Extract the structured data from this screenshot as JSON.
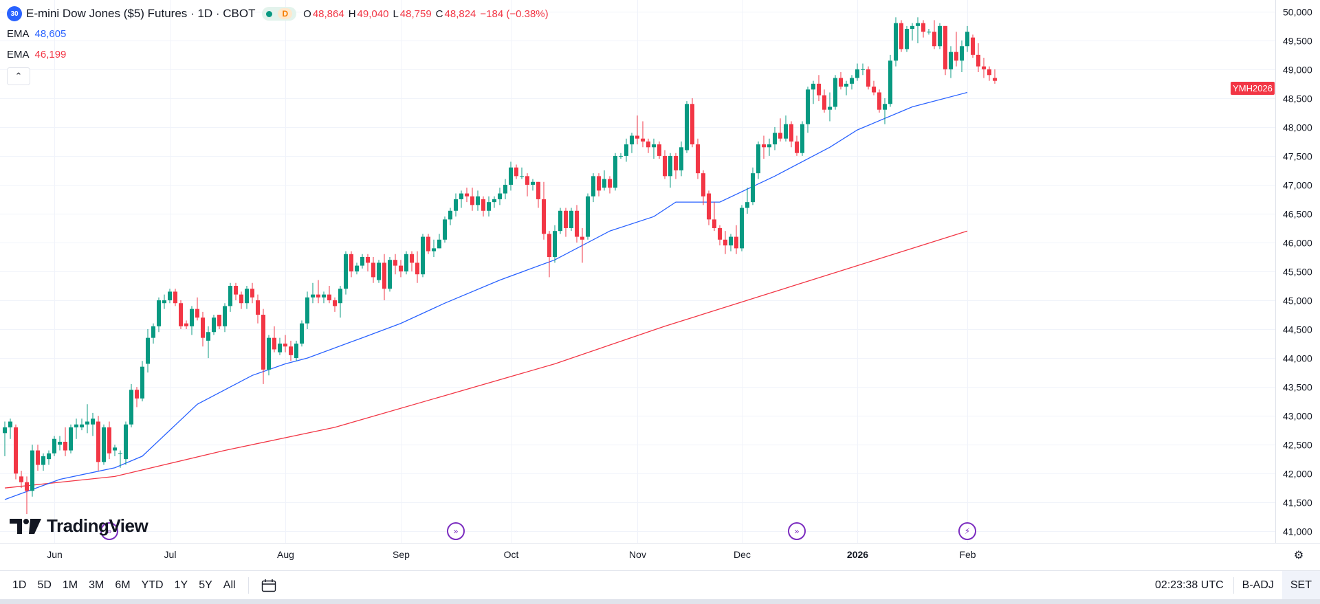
{
  "header": {
    "symbol_badge": "30",
    "title": "E-mini Dow Jones ($5) Futures · 1D · CBOT",
    "status_letter": "D",
    "ohlc": [
      {
        "label": "O",
        "value": "48,864"
      },
      {
        "label": "H",
        "value": "49,040"
      },
      {
        "label": "L",
        "value": "48,759"
      },
      {
        "label": "C",
        "value": "48,824"
      }
    ],
    "change": "−184 (−0.38%)",
    "collapse_glyph": "⌃"
  },
  "indicators": [
    {
      "label": "EMA",
      "value": "48,605",
      "color": "#2962ff"
    },
    {
      "label": "EMA",
      "value": "46,199",
      "color": "#f23645"
    }
  ],
  "price_badge": "YMH2026",
  "logo_text": "TradingView",
  "bottom_bar": {
    "timeframes": [
      "1D",
      "5D",
      "1M",
      "3M",
      "6M",
      "YTD",
      "1Y",
      "5Y",
      "All"
    ],
    "time": "02:23:38 UTC",
    "badj": "B-ADJ",
    "set": "SET"
  },
  "colors": {
    "up": "#089981",
    "down": "#f23645",
    "ema_fast": "#2962ff",
    "ema_slow": "#f23645",
    "grid": "#f0f3fa"
  },
  "icons": [
    "replay-icon",
    "flash-icon",
    "calendar-icon",
    "gear-icon"
  ],
  "chart_data": {
    "type": "candlestick",
    "ylim": [
      40800,
      50200
    ],
    "y_ticks": [
      41000,
      41500,
      42000,
      42500,
      43000,
      43500,
      44000,
      44500,
      45000,
      45500,
      46000,
      46500,
      47000,
      47500,
      48000,
      48500,
      49000,
      49500,
      50000
    ],
    "y_tick_labels": [
      "41,000",
      "41,500",
      "42,000",
      "42,500",
      "43,000",
      "43,500",
      "44,000",
      "44,500",
      "45,000",
      "45,500",
      "46,000",
      "46,500",
      "47,000",
      "47,500",
      "48,000",
      "48,500",
      "49,000",
      "49,500",
      "50,000"
    ],
    "x_labels": [
      {
        "label": "Jun",
        "bar": 9,
        "bold": false
      },
      {
        "label": "Jul",
        "bar": 30,
        "bold": false
      },
      {
        "label": "Aug",
        "bar": 51,
        "bold": false
      },
      {
        "label": "Sep",
        "bar": 72,
        "bold": false
      },
      {
        "label": "Oct",
        "bar": 92,
        "bold": false
      },
      {
        "label": "Nov",
        "bar": 115,
        "bold": false
      },
      {
        "label": "Dec",
        "bar": 134,
        "bold": false
      },
      {
        "label": "2026",
        "bar": 155,
        "bold": true
      },
      {
        "label": "Feb",
        "bar": 175,
        "bold": false
      }
    ],
    "event_bars": [
      19,
      82,
      144,
      175
    ],
    "candles": [
      [
        42700,
        42900,
        42300,
        42800
      ],
      [
        42800,
        42950,
        42600,
        42900
      ],
      [
        42800,
        42850,
        41900,
        42000
      ],
      [
        41950,
        42050,
        41750,
        41850
      ],
      [
        41850,
        41950,
        41300,
        41700
      ],
      [
        41700,
        42500,
        41600,
        42400
      ],
      [
        42400,
        42500,
        42050,
        42150
      ],
      [
        42150,
        42350,
        42050,
        42300
      ],
      [
        42250,
        42400,
        42150,
        42350
      ],
      [
        42350,
        42650,
        42300,
        42600
      ],
      [
        42500,
        42650,
        42400,
        42550
      ],
      [
        42550,
        42800,
        42300,
        42400
      ],
      [
        42400,
        42850,
        42350,
        42800
      ],
      [
        42800,
        42950,
        42600,
        42850
      ],
      [
        42800,
        42950,
        42750,
        42850
      ],
      [
        42850,
        43200,
        42700,
        42900
      ],
      [
        42850,
        43050,
        42650,
        42950
      ],
      [
        42900,
        43000,
        42050,
        42200
      ],
      [
        42200,
        42850,
        42150,
        42800
      ],
      [
        42800,
        42900,
        42250,
        42350
      ],
      [
        42400,
        42500,
        42300,
        42450
      ],
      [
        42350,
        42400,
        42100,
        42350
      ],
      [
        42250,
        42900,
        42150,
        42850
      ],
      [
        42850,
        43550,
        42800,
        43450
      ],
      [
        43450,
        43500,
        43150,
        43300
      ],
      [
        43300,
        43950,
        43250,
        43850
      ],
      [
        43900,
        44500,
        43750,
        44350
      ],
      [
        44350,
        44600,
        44250,
        44550
      ],
      [
        44550,
        45050,
        44450,
        45000
      ],
      [
        44950,
        45100,
        44850,
        45000
      ],
      [
        45000,
        45200,
        44950,
        45150
      ],
      [
        45150,
        45200,
        44900,
        44950
      ],
      [
        44950,
        45000,
        44500,
        44550
      ],
      [
        44600,
        44650,
        44500,
        44550
      ],
      [
        44550,
        44900,
        44400,
        44850
      ],
      [
        44850,
        45050,
        44650,
        44700
      ],
      [
        44700,
        44800,
        44200,
        44350
      ],
      [
        44300,
        44550,
        44000,
        44450
      ],
      [
        44450,
        44750,
        44400,
        44700
      ],
      [
        44750,
        44750,
        44500,
        44550
      ],
      [
        44550,
        44950,
        44450,
        44900
      ],
      [
        44900,
        45300,
        44800,
        45250
      ],
      [
        45250,
        45300,
        45000,
        45100
      ],
      [
        45100,
        45150,
        44850,
        44950
      ],
      [
        44950,
        45250,
        44850,
        45200
      ],
      [
        45200,
        45300,
        44950,
        45050
      ],
      [
        45000,
        45100,
        44600,
        44750
      ],
      [
        44750,
        44850,
        43550,
        43800
      ],
      [
        43800,
        44400,
        43700,
        44350
      ],
      [
        44350,
        44550,
        44100,
        44150
      ],
      [
        44100,
        44350,
        44050,
        44250
      ],
      [
        44250,
        44400,
        44100,
        44200
      ],
      [
        44200,
        44300,
        43950,
        44050
      ],
      [
        44000,
        44300,
        43950,
        44250
      ],
      [
        44250,
        44650,
        44200,
        44600
      ],
      [
        44600,
        45150,
        44500,
        45050
      ],
      [
        45050,
        45300,
        44950,
        45100
      ],
      [
        45100,
        45350,
        44950,
        45050
      ],
      [
        45050,
        45150,
        44950,
        45100
      ],
      [
        45100,
        45250,
        44950,
        45000
      ],
      [
        45000,
        45050,
        44800,
        44900
      ],
      [
        44950,
        45250,
        44700,
        45200
      ],
      [
        45200,
        45850,
        45100,
        45800
      ],
      [
        45800,
        45850,
        45400,
        45500
      ],
      [
        45500,
        45650,
        45450,
        45600
      ],
      [
        45600,
        45800,
        45550,
        45750
      ],
      [
        45750,
        45800,
        45500,
        45650
      ],
      [
        45650,
        45750,
        45300,
        45400
      ],
      [
        45350,
        45700,
        45300,
        45650
      ],
      [
        45650,
        45800,
        45000,
        45200
      ],
      [
        45200,
        45750,
        45150,
        45700
      ],
      [
        45700,
        45800,
        45450,
        45600
      ],
      [
        45600,
        45700,
        45400,
        45500
      ],
      [
        45500,
        45850,
        45450,
        45800
      ],
      [
        45800,
        45850,
        45500,
        45650
      ],
      [
        45650,
        45850,
        45300,
        45450
      ],
      [
        45450,
        46150,
        45400,
        46100
      ],
      [
        46100,
        46150,
        45800,
        45850
      ],
      [
        45850,
        46050,
        45750,
        45900
      ],
      [
        45900,
        46150,
        45900,
        46050
      ],
      [
        46050,
        46450,
        46000,
        46400
      ],
      [
        46400,
        46600,
        46300,
        46550
      ],
      [
        46550,
        46850,
        46450,
        46750
      ],
      [
        46750,
        46900,
        46600,
        46850
      ],
      [
        46850,
        46950,
        46700,
        46800
      ],
      [
        46800,
        46950,
        46550,
        46650
      ],
      [
        46650,
        46900,
        46550,
        46800
      ],
      [
        46750,
        46800,
        46450,
        46550
      ],
      [
        46550,
        46800,
        46450,
        46700
      ],
      [
        46700,
        46800,
        46600,
        46750
      ],
      [
        46750,
        46950,
        46650,
        46850
      ],
      [
        46850,
        47100,
        46750,
        47000
      ],
      [
        47000,
        47400,
        46900,
        47300
      ],
      [
        47300,
        47350,
        47100,
        47150
      ],
      [
        47150,
        47300,
        47100,
        47150
      ],
      [
        47150,
        47200,
        46800,
        47000
      ],
      [
        47000,
        47100,
        46900,
        47050
      ],
      [
        47050,
        47050,
        46600,
        46750
      ],
      [
        46750,
        47050,
        46050,
        46150
      ],
      [
        46150,
        46200,
        45400,
        45750
      ],
      [
        45750,
        46300,
        45650,
        46200
      ],
      [
        46200,
        46600,
        46150,
        46550
      ],
      [
        46550,
        46600,
        46100,
        46250
      ],
      [
        46250,
        46600,
        46200,
        46550
      ],
      [
        46550,
        46650,
        46000,
        46100
      ],
      [
        46100,
        46250,
        45650,
        46050
      ],
      [
        46100,
        46850,
        46050,
        46800
      ],
      [
        46800,
        47200,
        46700,
        47150
      ],
      [
        47150,
        47200,
        46800,
        46900
      ],
      [
        46950,
        47250,
        46900,
        47100
      ],
      [
        47100,
        47150,
        46850,
        46950
      ],
      [
        46950,
        47550,
        46900,
        47500
      ],
      [
        47500,
        47550,
        47450,
        47500
      ],
      [
        47500,
        47800,
        47400,
        47700
      ],
      [
        47700,
        47900,
        47550,
        47850
      ],
      [
        47850,
        48200,
        47700,
        47800
      ],
      [
        47800,
        48100,
        47650,
        47750
      ],
      [
        47750,
        47800,
        47550,
        47650
      ],
      [
        47650,
        47800,
        47450,
        47700
      ],
      [
        47700,
        47750,
        47450,
        47500
      ],
      [
        47500,
        47600,
        47100,
        47150
      ],
      [
        47150,
        47550,
        46950,
        47500
      ],
      [
        47500,
        47550,
        47100,
        47250
      ],
      [
        47250,
        47750,
        47150,
        47650
      ],
      [
        47600,
        48450,
        47550,
        48400
      ],
      [
        48400,
        48500,
        47650,
        47700
      ],
      [
        47700,
        47800,
        47100,
        47200
      ],
      [
        47200,
        47250,
        46650,
        46800
      ],
      [
        46850,
        46900,
        46300,
        46400
      ],
      [
        46400,
        46700,
        46200,
        46250
      ],
      [
        46250,
        46300,
        45950,
        46050
      ],
      [
        46050,
        46200,
        45800,
        45950
      ],
      [
        45950,
        46150,
        45850,
        46100
      ],
      [
        46100,
        46300,
        45800,
        45900
      ],
      [
        45900,
        46650,
        45850,
        46600
      ],
      [
        46600,
        46950,
        46500,
        46700
      ],
      [
        46700,
        47300,
        46650,
        47200
      ],
      [
        47200,
        47750,
        47100,
        47700
      ],
      [
        47700,
        47850,
        47450,
        47650
      ],
      [
        47650,
        47800,
        47500,
        47700
      ],
      [
        47700,
        48000,
        47600,
        47900
      ],
      [
        47900,
        48150,
        47750,
        47800
      ],
      [
        47800,
        48200,
        47750,
        48050
      ],
      [
        48050,
        48100,
        47650,
        47750
      ],
      [
        47750,
        47850,
        47500,
        47550
      ],
      [
        47550,
        48100,
        47500,
        48050
      ],
      [
        48050,
        48700,
        47900,
        48650
      ],
      [
        48650,
        48800,
        48400,
        48750
      ],
      [
        48750,
        48900,
        48450,
        48550
      ],
      [
        48550,
        48650,
        48250,
        48300
      ],
      [
        48300,
        48600,
        48100,
        48350
      ],
      [
        48350,
        48900,
        48300,
        48850
      ],
      [
        48850,
        48950,
        48650,
        48700
      ],
      [
        48700,
        48800,
        48550,
        48750
      ],
      [
        48750,
        48900,
        48650,
        48850
      ],
      [
        48850,
        49100,
        48800,
        49000
      ],
      [
        49000,
        49100,
        48900,
        49000
      ],
      [
        49000,
        49050,
        48650,
        48700
      ],
      [
        48700,
        48800,
        48550,
        48600
      ],
      [
        48600,
        48650,
        48250,
        48300
      ],
      [
        48300,
        48500,
        48050,
        48400
      ],
      [
        48400,
        49250,
        48350,
        49150
      ],
      [
        49150,
        49900,
        49050,
        49800
      ],
      [
        49800,
        49850,
        49300,
        49350
      ],
      [
        49350,
        49750,
        49300,
        49700
      ],
      [
        49700,
        49800,
        49500,
        49750
      ],
      [
        49750,
        49900,
        49450,
        49800
      ],
      [
        49800,
        49850,
        49550,
        49650
      ],
      [
        49650,
        49700,
        49600,
        49650
      ],
      [
        49650,
        49850,
        49350,
        49400
      ],
      [
        49400,
        49800,
        49350,
        49750
      ],
      [
        49750,
        49750,
        48900,
        49000
      ],
      [
        49000,
        49400,
        48850,
        49300
      ],
      [
        49300,
        49650,
        49050,
        49150
      ],
      [
        49150,
        49500,
        48950,
        49400
      ],
      [
        49400,
        49750,
        49300,
        49650
      ],
      [
        49550,
        49600,
        49200,
        49250
      ],
      [
        49250,
        49450,
        48950,
        49050
      ],
      [
        49050,
        49200,
        48850,
        49000
      ],
      [
        49000,
        49050,
        48800,
        48900
      ],
      [
        48850,
        49000,
        48750,
        48800
      ]
    ],
    "ema_fast_points": [
      [
        0,
        41550
      ],
      [
        10,
        41900
      ],
      [
        20,
        42100
      ],
      [
        25,
        42300
      ],
      [
        30,
        42750
      ],
      [
        35,
        43200
      ],
      [
        45,
        43700
      ],
      [
        51,
        43900
      ],
      [
        55,
        44000
      ],
      [
        65,
        44350
      ],
      [
        72,
        44600
      ],
      [
        80,
        44950
      ],
      [
        90,
        45350
      ],
      [
        100,
        45700
      ],
      [
        110,
        46200
      ],
      [
        118,
        46450
      ],
      [
        122,
        46700
      ],
      [
        126,
        46700
      ],
      [
        130,
        46700
      ],
      [
        140,
        47150
      ],
      [
        150,
        47650
      ],
      [
        155,
        47950
      ],
      [
        165,
        48350
      ],
      [
        175,
        48600
      ]
    ],
    "ema_slow_points": [
      [
        0,
        41750
      ],
      [
        20,
        41950
      ],
      [
        40,
        42400
      ],
      [
        60,
        42800
      ],
      [
        80,
        43350
      ],
      [
        100,
        43900
      ],
      [
        120,
        44550
      ],
      [
        140,
        45150
      ],
      [
        160,
        45750
      ],
      [
        175,
        46200
      ]
    ]
  }
}
